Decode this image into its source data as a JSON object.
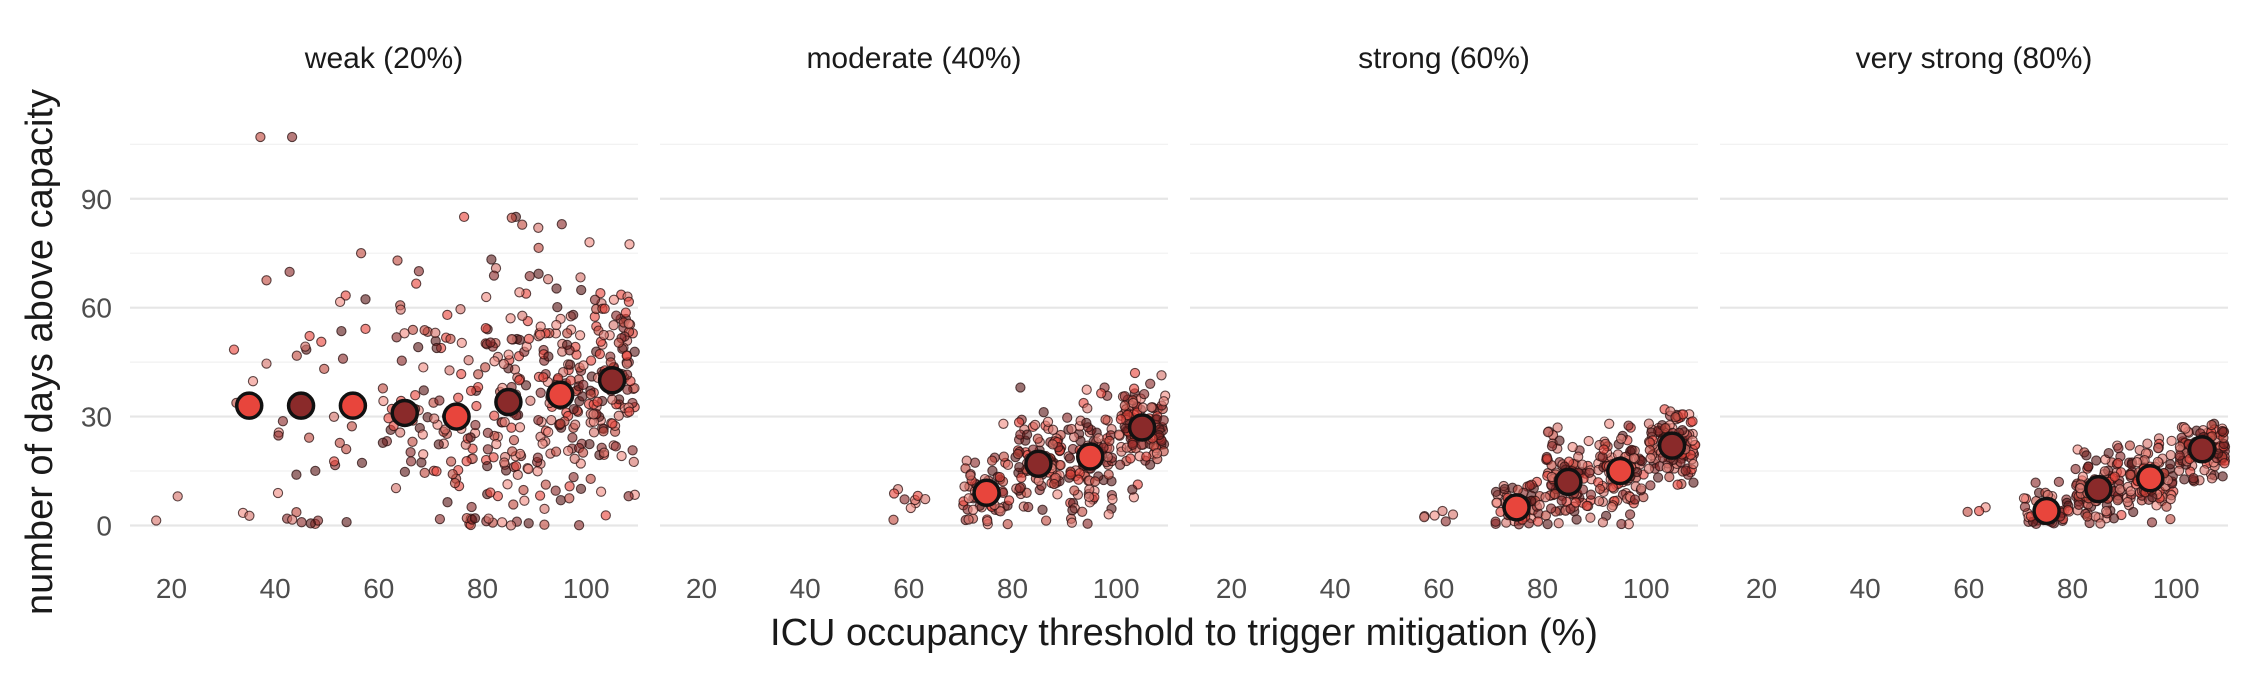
{
  "chart_data": {
    "type": "scatter",
    "xlabel": "ICU occupancy threshold to trigger mitigation (%)",
    "ylabel": "number of days above capacity",
    "xlim": [
      12,
      110
    ],
    "ylim": [
      -4,
      115
    ],
    "x_ticks": [
      20,
      40,
      60,
      80,
      100
    ],
    "y_ticks": [
      0,
      30,
      60,
      90
    ],
    "grid": true,
    "legend": "none",
    "facets": [
      {
        "title": "weak (20%)",
        "means": [
          {
            "x": 35,
            "y": 33,
            "color": "#e8453c"
          },
          {
            "x": 45,
            "y": 33,
            "color": "#8a2a2a"
          },
          {
            "x": 55,
            "y": 33,
            "color": "#e8453c"
          },
          {
            "x": 65,
            "y": 31,
            "color": "#8a2a2a"
          },
          {
            "x": 75,
            "y": 30,
            "color": "#e8453c"
          },
          {
            "x": 85,
            "y": 34,
            "color": "#8a2a2a"
          },
          {
            "x": 95,
            "y": 36,
            "color": "#e8453c"
          },
          {
            "x": 105,
            "y": 40,
            "color": "#8a2a2a"
          }
        ],
        "clouds": [
          {
            "x": 20,
            "n": 2,
            "min": 0,
            "max": 8,
            "mean": 3,
            "sd": 4
          },
          {
            "x": 35,
            "n": 8,
            "min": 2,
            "max": 107,
            "mean": 33,
            "sd": 28
          },
          {
            "x": 45,
            "n": 22,
            "min": 0,
            "max": 107,
            "mean": 33,
            "sd": 24
          },
          {
            "x": 55,
            "n": 16,
            "min": 0,
            "max": 75,
            "mean": 33,
            "sd": 20
          },
          {
            "x": 65,
            "n": 40,
            "min": 0,
            "max": 73,
            "mean": 31,
            "sd": 19
          },
          {
            "x": 75,
            "n": 58,
            "min": 0,
            "max": 85,
            "mean": 30,
            "sd": 20
          },
          {
            "x": 85,
            "n": 95,
            "min": 0,
            "max": 85,
            "mean": 34,
            "sd": 20
          },
          {
            "x": 95,
            "n": 110,
            "min": 0,
            "max": 83,
            "mean": 36,
            "sd": 18
          },
          {
            "x": 105,
            "n": 120,
            "min": 2,
            "max": 78,
            "mean": 40,
            "sd": 15
          }
        ]
      },
      {
        "title": "moderate (40%)",
        "means": [
          {
            "x": 75,
            "y": 9,
            "color": "#e8453c"
          },
          {
            "x": 85,
            "y": 17,
            "color": "#8a2a2a"
          },
          {
            "x": 95,
            "y": 19,
            "color": "#e8453c"
          },
          {
            "x": 105,
            "y": 27,
            "color": "#8a2a2a"
          }
        ],
        "clouds": [
          {
            "x": 60,
            "n": 9,
            "min": 0,
            "max": 10,
            "mean": 6,
            "sd": 3
          },
          {
            "x": 75,
            "n": 60,
            "min": 0,
            "max": 28,
            "mean": 9,
            "sd": 6
          },
          {
            "x": 85,
            "n": 90,
            "min": 0,
            "max": 38,
            "mean": 17,
            "sd": 7
          },
          {
            "x": 95,
            "n": 95,
            "min": 0,
            "max": 38,
            "mean": 19,
            "sd": 8
          },
          {
            "x": 105,
            "n": 110,
            "min": 3,
            "max": 42,
            "mean": 27,
            "sd": 7
          }
        ]
      },
      {
        "title": "strong (60%)",
        "means": [
          {
            "x": 75,
            "y": 5,
            "color": "#e8453c"
          },
          {
            "x": 85,
            "y": 12,
            "color": "#8a2a2a"
          },
          {
            "x": 95,
            "y": 15,
            "color": "#e8453c"
          },
          {
            "x": 105,
            "y": 22,
            "color": "#8a2a2a"
          }
        ],
        "clouds": [
          {
            "x": 60,
            "n": 6,
            "min": 2,
            "max": 4,
            "mean": 3,
            "sd": 1
          },
          {
            "x": 75,
            "n": 50,
            "min": 0,
            "max": 12,
            "mean": 5,
            "sd": 4
          },
          {
            "x": 85,
            "n": 95,
            "min": 0,
            "max": 27,
            "mean": 12,
            "sd": 6
          },
          {
            "x": 95,
            "n": 95,
            "min": 0,
            "max": 28,
            "mean": 15,
            "sd": 6
          },
          {
            "x": 105,
            "n": 115,
            "min": 3,
            "max": 32,
            "mean": 22,
            "sd": 5
          }
        ]
      },
      {
        "title": "very strong (80%)",
        "means": [
          {
            "x": 75,
            "y": 4,
            "color": "#e8453c"
          },
          {
            "x": 85,
            "y": 10,
            "color": "#8a2a2a"
          },
          {
            "x": 95,
            "y": 13,
            "color": "#e8453c"
          },
          {
            "x": 105,
            "y": 21,
            "color": "#8a2a2a"
          }
        ],
        "clouds": [
          {
            "x": 60,
            "n": 3,
            "min": 2,
            "max": 5,
            "mean": 3,
            "sd": 1
          },
          {
            "x": 75,
            "n": 45,
            "min": 0,
            "max": 12,
            "mean": 4,
            "sd": 3
          },
          {
            "x": 85,
            "n": 95,
            "min": 0,
            "max": 22,
            "mean": 10,
            "sd": 5
          },
          {
            "x": 95,
            "n": 100,
            "min": 0,
            "max": 24,
            "mean": 13,
            "sd": 5
          },
          {
            "x": 105,
            "n": 115,
            "min": 5,
            "max": 28,
            "mean": 21,
            "sd": 4
          }
        ]
      }
    ],
    "point_colors": [
      "#e8453c",
      "#f08c82",
      "#c0483e",
      "#8a2a2a",
      "#5e1c1c",
      "#d6736a"
    ]
  }
}
